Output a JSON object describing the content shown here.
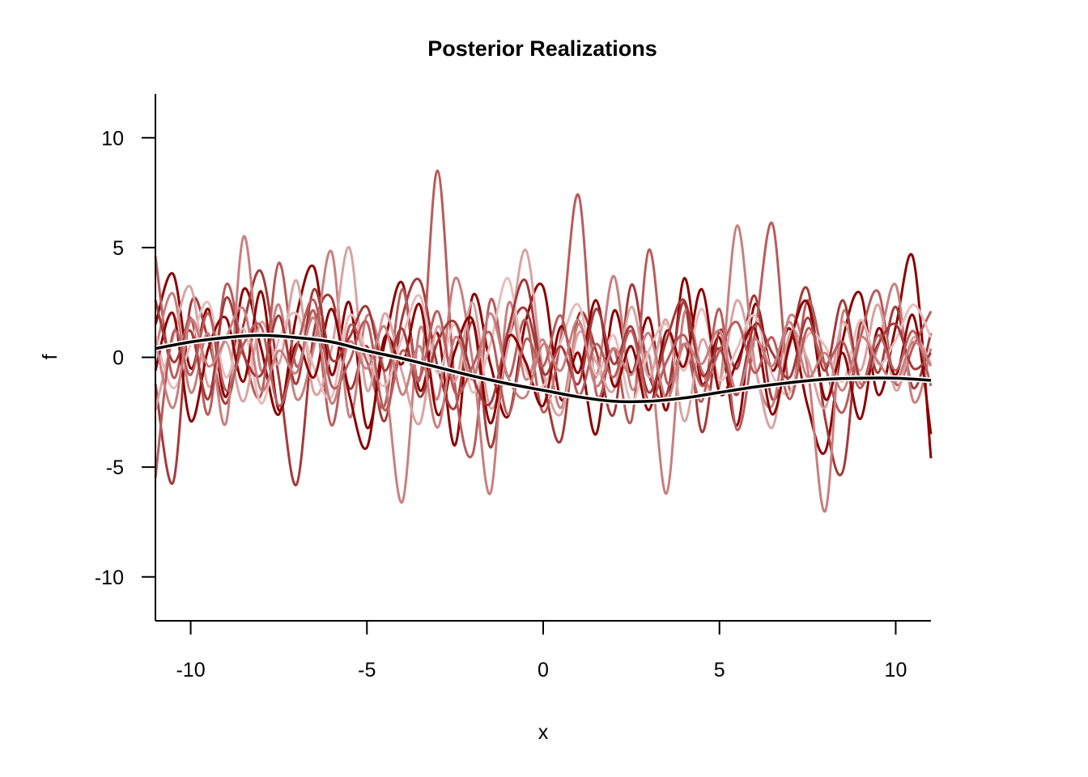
{
  "chart_data": {
    "type": "line",
    "title": "Posterior Realizations",
    "xlabel": "x",
    "ylabel": "f",
    "xlim": [
      -11,
      11
    ],
    "ylim": [
      -12,
      12
    ],
    "x_ticks": [
      -10,
      -5,
      0,
      5,
      10
    ],
    "x_tick_labels": [
      "-10",
      "-5",
      "0",
      "5",
      "10"
    ],
    "y_ticks": [
      -10,
      -5,
      0,
      5,
      10
    ],
    "y_tick_labels": [
      "-10",
      "-5",
      "0",
      "5",
      "10"
    ],
    "grid": false,
    "legend": "none",
    "realization_colors": [
      "#8b0000",
      "#a33a3a",
      "#b85c5c",
      "#c97f7f",
      "#d9a3a3",
      "#e6bdbd"
    ],
    "mean_line_color": "#000000",
    "mean_line_outline_color": "#ffffff",
    "series": [
      {
        "role": "posterior-mean",
        "x": [
          -11,
          -10,
          -9,
          -8,
          -7,
          -6,
          -5,
          -4,
          -3,
          -2,
          -1,
          0,
          1,
          2,
          3,
          4,
          5,
          6,
          7,
          8,
          9,
          10,
          11
        ],
        "values": [
          0.4,
          0.7,
          0.9,
          1.0,
          0.9,
          0.7,
          0.3,
          -0.05,
          -0.45,
          -0.85,
          -1.2,
          -1.5,
          -1.8,
          -2.0,
          -2.0,
          -1.85,
          -1.6,
          -1.35,
          -1.15,
          -1.0,
          -0.95,
          -0.95,
          -1.05
        ]
      },
      {
        "role": "realization",
        "x": [
          -11,
          -10.5,
          -10,
          -9.5,
          -9,
          -8.5,
          -8,
          -7.5,
          -7,
          -6.5,
          -6,
          -5.5,
          -5,
          -4.5,
          -4,
          -3.5,
          -3,
          -2.5,
          -2,
          -1.5,
          -1,
          -0.5,
          0,
          0.5,
          1,
          1.5,
          2,
          2.5,
          3,
          3.5,
          4,
          4.5,
          5,
          5.5,
          6,
          6.5,
          7,
          7.5,
          8,
          8.5,
          9,
          9.5,
          10,
          10.5,
          11
        ],
        "values": [
          1.5,
          3.8,
          -0.5,
          2.2,
          -1.8,
          3.1,
          0.4,
          -2.6,
          1.9,
          4.1,
          -0.8,
          2.5,
          -3.2,
          0.6,
          3.4,
          -1.5,
          1.1,
          -4.0,
          2.8,
          -0.3,
          -2.7,
          1.6,
          3.2,
          -1.9,
          0.2,
          -3.5,
          2.1,
          -0.7,
          1.8,
          -2.4,
          3.6,
          -1.2,
          0.9,
          -3.1,
          2.4,
          -0.6,
          1.3,
          -2.2,
          -4.3,
          0.8,
          2.9,
          -1.7,
          1.4,
          4.5,
          -4.6
        ]
      },
      {
        "role": "realization",
        "x": [
          -11,
          -10.5,
          -10,
          -9.5,
          -9,
          -8.5,
          -8,
          -7.5,
          -7,
          -6.5,
          -6,
          -5.5,
          -5,
          -4.5,
          -4,
          -3.5,
          -3,
          -2.5,
          -2,
          -1.5,
          -1,
          -0.5,
          0,
          0.5,
          1,
          1.5,
          2,
          2.5,
          3,
          3.5,
          4,
          4.5,
          5,
          5.5,
          6,
          6.5,
          7,
          7.5,
          8,
          8.5,
          9,
          9.5,
          10,
          10.5,
          11
        ],
        "values": [
          -1.2,
          -5.7,
          2.4,
          0.8,
          -2.1,
          1.5,
          3.9,
          -0.9,
          -5.8,
          1.2,
          2.7,
          -1.4,
          0.5,
          -2.9,
          1.8,
          3.5,
          -0.4,
          -2.3,
          1.6,
          -4.1,
          0.7,
          2.2,
          -1.1,
          -3.8,
          1.9,
          0.3,
          -2.6,
          3.3,
          -0.8,
          -1.7,
          2.5,
          -3.4,
          1.2,
          -0.5,
          2.8,
          -1.9,
          0.6,
          3.1,
          -2.8,
          -5.2,
          1.5,
          -0.7,
          2.3,
          -1.4,
          1.1
        ]
      },
      {
        "role": "realization",
        "x": [
          -11,
          -10.5,
          -10,
          -9.5,
          -9,
          -8.5,
          -8,
          -7.5,
          -7,
          -6.5,
          -6,
          -5.5,
          -5,
          -4.5,
          -4,
          -3.5,
          -3,
          -2.5,
          -2,
          -1.5,
          -1,
          -0.5,
          0,
          0.5,
          1,
          1.5,
          2,
          2.5,
          3,
          3.5,
          4,
          4.5,
          5,
          5.5,
          6,
          6.5,
          7,
          7.5,
          8,
          8.5,
          9,
          9.5,
          10,
          10.5,
          11
        ],
        "values": [
          4.6,
          -0.9,
          1.8,
          -2.6,
          3.3,
          0.2,
          -1.7,
          4.3,
          -0.4,
          2.1,
          -3.1,
          1.4,
          -0.2,
          -2.2,
          3.1,
          -1.0,
          8.5,
          -1.3,
          -4.4,
          2.6,
          -0.9,
          1.7,
          -2.5,
          0.9,
          7.4,
          -1.6,
          0.4,
          -2.9,
          4.9,
          -1.1,
          0.6,
          -2.0,
          2.2,
          -3.3,
          1.0,
          6.1,
          -1.5,
          2.6,
          -0.4,
          -2.5,
          0.9,
          3.0,
          -1.2,
          0.5,
          2.1
        ]
      },
      {
        "role": "realization",
        "x": [
          -11,
          -10.5,
          -10,
          -9.5,
          -9,
          -8.5,
          -8,
          -7.5,
          -7,
          -6.5,
          -6,
          -5.5,
          -5,
          -4.5,
          -4,
          -3.5,
          -3,
          -2.5,
          -2,
          -1.5,
          -1,
          -0.5,
          0,
          0.5,
          1,
          1.5,
          2,
          2.5,
          3,
          3.5,
          4,
          4.5,
          5,
          5.5,
          6,
          6.5,
          7,
          7.5,
          8,
          8.5,
          9,
          9.5,
          10,
          10.5,
          11
        ],
        "values": [
          0.3,
          2.9,
          -1.6,
          1.1,
          -3.0,
          5.5,
          -0.6,
          2.4,
          -1.9,
          0.5,
          4.8,
          -2.7,
          1.9,
          -0.8,
          -6.6,
          1.3,
          -1.9,
          3.6,
          -0.2,
          -6.2,
          2.4,
          -1.0,
          0.8,
          -2.3,
          1.5,
          -0.9,
          3.7,
          -1.4,
          0.1,
          -6.2,
          2.0,
          -0.6,
          -1.3,
          6.0,
          -0.3,
          -2.2,
          1.9,
          -0.5,
          -7.0,
          2.0,
          -1.2,
          0.5,
          3.3,
          -2.0,
          0.4
        ]
      },
      {
        "role": "realization",
        "x": [
          -11,
          -10.5,
          -10,
          -9.5,
          -9,
          -8.5,
          -8,
          -7.5,
          -7,
          -6.5,
          -6,
          -5.5,
          -5,
          -4.5,
          -4,
          -3.5,
          -3,
          -2.5,
          -2,
          -1.5,
          -1,
          -0.5,
          0,
          0.5,
          1,
          1.5,
          2,
          2.5,
          3,
          3.5,
          4,
          4.5,
          5,
          5.5,
          6,
          6.5,
          7,
          7.5,
          8,
          8.5,
          9,
          9.5,
          10,
          10.5,
          11
        ],
        "values": [
          -2.4,
          0.9,
          3.2,
          -1.3,
          0.7,
          -2.0,
          1.6,
          -0.3,
          3.5,
          -1.6,
          0.4,
          5.0,
          -1.5,
          2.0,
          -0.7,
          -3.0,
          1.4,
          -1.1,
          2.5,
          -2.3,
          0.5,
          4.9,
          -0.6,
          -2.6,
          1.1,
          -0.2,
          -1.5,
          2.3,
          -0.9,
          1.7,
          -2.9,
          0.8,
          -1.1,
          2.6,
          -0.4,
          -3.2,
          1.1,
          -0.1,
          -2.3,
          1.6,
          -0.6,
          2.4,
          -1.5,
          0.9,
          -0.3
        ]
      },
      {
        "role": "realization",
        "x": [
          -11,
          -10.5,
          -10,
          -9.5,
          -9,
          -8.5,
          -8,
          -7.5,
          -7,
          -6.5,
          -6,
          -5.5,
          -5,
          -4.5,
          -4,
          -3.5,
          -3,
          -2.5,
          -2,
          -1.5,
          -1,
          -0.5,
          0,
          0.5,
          1,
          1.5,
          2,
          2.5,
          3,
          3.5,
          4,
          4.5,
          5,
          5.5,
          6,
          6.5,
          7,
          7.5,
          8,
          8.5,
          9,
          9.5,
          10,
          10.5,
          11
        ],
        "values": [
          1.0,
          -1.4,
          0.6,
          2.5,
          -0.9,
          1.3,
          -2.1,
          0.8,
          2.0,
          -0.5,
          -1.8,
          1.9,
          0.2,
          -1.3,
          0.9,
          2.8,
          -0.7,
          1.5,
          -1.6,
          0.6,
          3.6,
          -0.5,
          -1.3,
          0.7,
          2.4,
          -0.8,
          1.0,
          -2.0,
          0.3,
          1.5,
          -0.6,
          2.2,
          -1.0,
          0.4,
          1.9,
          -0.8,
          -1.6,
          1.0,
          0.5,
          -1.1,
          1.7,
          -0.3,
          0.8,
          2.4,
          0.9
        ]
      },
      {
        "role": "realization",
        "x": [
          -11,
          -10.5,
          -10,
          -9.5,
          -9,
          -8.5,
          -8,
          -7.5,
          -7,
          -6.5,
          -6,
          -5.5,
          -5,
          -4.5,
          -4,
          -3.5,
          -3,
          -2.5,
          -2,
          -1.5,
          -1,
          -0.5,
          0,
          0.5,
          1,
          1.5,
          2,
          2.5,
          3,
          3.5,
          4,
          4.5,
          5,
          5.5,
          6,
          6.5,
          7,
          7.5,
          8,
          8.5,
          9,
          9.5,
          10,
          10.5,
          11
        ],
        "values": [
          -0.6,
          2.0,
          -2.9,
          0.4,
          1.8,
          -1.1,
          3.0,
          -2.4,
          0.6,
          -0.9,
          2.2,
          -1.7,
          -4.1,
          0.9,
          -0.3,
          2.4,
          -2.6,
          0.3,
          1.7,
          -3.0,
          0.9,
          -0.2,
          -2.2,
          1.4,
          -0.7,
          2.6,
          -1.3,
          0.5,
          -2.4,
          1.2,
          -0.4,
          3.1,
          -1.6,
          -0.2,
          1.3,
          -2.6,
          0.7,
          2.5,
          -1.9,
          0.2,
          -2.8,
          1.3,
          -0.8,
          1.9,
          -3.5
        ]
      },
      {
        "role": "realization",
        "x": [
          -11,
          -10.5,
          -10,
          -9.5,
          -9,
          -8.5,
          -8,
          -7.5,
          -7,
          -6.5,
          -6,
          -5.5,
          -5,
          -4.5,
          -4,
          -3.5,
          -3,
          -2.5,
          -2,
          -1.5,
          -1,
          -0.5,
          0,
          0.5,
          1,
          1.5,
          2,
          2.5,
          3,
          3.5,
          4,
          4.5,
          5,
          5.5,
          6,
          6.5,
          7,
          7.5,
          8,
          8.5,
          9,
          9.5,
          10,
          10.5,
          11
        ],
        "values": [
          2.6,
          -0.2,
          1.2,
          -1.9,
          2.7,
          0.1,
          -0.8,
          1.9,
          -1.2,
          3.1,
          -0.1,
          0.9,
          2.3,
          -0.6,
          1.3,
          -1.8,
          0.7,
          1.6,
          -0.9,
          -2.1,
          1.2,
          3.5,
          -0.7,
          0.5,
          -1.2,
          2.2,
          -0.3,
          1.4,
          -1.6,
          0.8,
          2.6,
          -0.8,
          0.4,
          -1.7,
          1.5,
          0.2,
          -0.9,
          1.8,
          -0.6,
          2.6,
          -1.0,
          0.6,
          1.5,
          -0.5,
          0.2
        ]
      },
      {
        "role": "realization",
        "x": [
          -11,
          -10.5,
          -10,
          -9.5,
          -9,
          -8.5,
          -8,
          -7.5,
          -7,
          -6.5,
          -6,
          -5.5,
          -5,
          -4.5,
          -4,
          -3.5,
          -3,
          -2.5,
          -2,
          -1.5,
          -1,
          -0.5,
          0,
          0.5,
          1,
          1.5,
          2,
          2.5,
          3,
          3.5,
          4,
          4.5,
          5,
          5.5,
          6,
          6.5,
          7,
          7.5,
          8,
          8.5,
          9,
          9.5,
          10,
          10.5,
          11
        ],
        "values": [
          -5.5,
          1.1,
          -0.8,
          2.0,
          -1.5,
          0.6,
          1.4,
          -2.2,
          0.4,
          2.6,
          -1.3,
          -0.2,
          1.6,
          -2.4,
          0.3,
          -0.9,
          2.1,
          -1.6,
          -0.4,
          1.1,
          -2.6,
          0.8,
          -0.4,
          1.9,
          -1.7,
          0.6,
          -0.9,
          1.2,
          -2.0,
          -0.2,
          1.0,
          -1.3,
          0.3,
          1.6,
          -0.7,
          0.9,
          -1.9,
          1.3,
          -0.3,
          0.7,
          -1.4,
          1.0,
          -0.6,
          1.2,
          -1.3
        ]
      },
      {
        "role": "realization",
        "x": [
          -11,
          -10.5,
          -10,
          -9.5,
          -9,
          -8.5,
          -8,
          -7.5,
          -7,
          -6.5,
          -6,
          -5.5,
          -5,
          -4.5,
          -4,
          -3.5,
          -3,
          -2.5,
          -2,
          -1.5,
          -1,
          -0.5,
          0,
          0.5,
          1,
          1.5,
          2,
          2.5,
          3,
          3.5,
          4,
          4.5,
          5,
          5.5,
          6,
          6.5,
          7,
          7.5,
          8,
          8.5,
          9,
          9.5,
          10,
          10.5,
          11
        ],
        "values": [
          0.8,
          -2.3,
          1.7,
          -0.4,
          0.9,
          2.2,
          -1.5,
          0.3,
          -0.7,
          1.8,
          -2.1,
          0.7,
          -0.5,
          1.4,
          -1.7,
          0.5,
          -3.2,
          0.9,
          -1.0,
          2.0,
          -0.9,
          -1.8,
          0.6,
          -0.6,
          1.7,
          -1.3,
          0.4,
          -0.8,
          1.1,
          -1.9,
          0.6,
          -0.3,
          1.2,
          -1.6,
          0.8,
          -0.4,
          1.6,
          -0.9,
          0.2,
          -1.5,
          0.9,
          -0.2,
          -1.1,
          0.7,
          -0.4
        ]
      }
    ]
  }
}
